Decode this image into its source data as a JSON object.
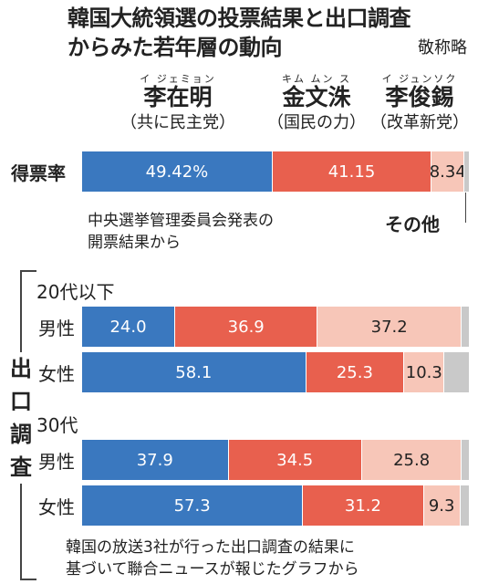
{
  "title_lines": [
    "韓国大統領選の投票結果と出口調査",
    "からみた若年層の動向"
  ],
  "honorific": "敬称略",
  "colors": {
    "blue": "#3a78bf",
    "red": "#e8604e",
    "pink": "#f7c6b8",
    "gray": "#c9c9c9"
  },
  "candidates": [
    {
      "ruby": "イ ジェミョン",
      "name": "李在明",
      "party": "（共に民主党）"
    },
    {
      "ruby": "キム ムン ス",
      "name": "金文洙",
      "party": "（国民の力）"
    },
    {
      "ruby": "イ ジュンソク",
      "name": "李俊錫",
      "party": "（改革新党）"
    }
  ],
  "vote_label": "得票率",
  "vote_source_lines": [
    "中央選挙管理委員会発表の",
    "開票結果から"
  ],
  "other_label": "その他",
  "exit_poll_label": "出口調査",
  "survey_source_lines": [
    "韓国の放送3社が行った出口調査の結果に",
    "基づいて聯合ニュースが報じたグラフから"
  ],
  "chart_data": {
    "type": "bar",
    "stacked": true,
    "orientation": "horizontal",
    "segment_order": [
      "李在明",
      "金文洙",
      "李俊錫",
      "その他"
    ],
    "vote_result": {
      "label": "得票率",
      "values": [
        49.42,
        41.15,
        8.34,
        1.09
      ],
      "display": [
        "49.42%",
        "41.15",
        "8.34",
        ""
      ]
    },
    "groups": [
      {
        "label": "20代以下",
        "rows": [
          {
            "label": "男性",
            "values": [
              24.0,
              36.9,
              37.2,
              1.9
            ],
            "display": [
              "24.0",
              "36.9",
              "37.2",
              ""
            ]
          },
          {
            "label": "女性",
            "values": [
              58.1,
              25.3,
              10.3,
              6.3
            ],
            "display": [
              "58.1",
              "25.3",
              "10.3",
              ""
            ]
          }
        ]
      },
      {
        "label": "30代",
        "rows": [
          {
            "label": "男性",
            "values": [
              37.9,
              34.5,
              25.8,
              1.8
            ],
            "display": [
              "37.9",
              "34.5",
              "25.8",
              ""
            ]
          },
          {
            "label": "女性",
            "values": [
              57.3,
              31.2,
              9.3,
              2.2
            ],
            "display": [
              "57.3",
              "31.2",
              "9.3",
              ""
            ]
          }
        ]
      }
    ]
  }
}
